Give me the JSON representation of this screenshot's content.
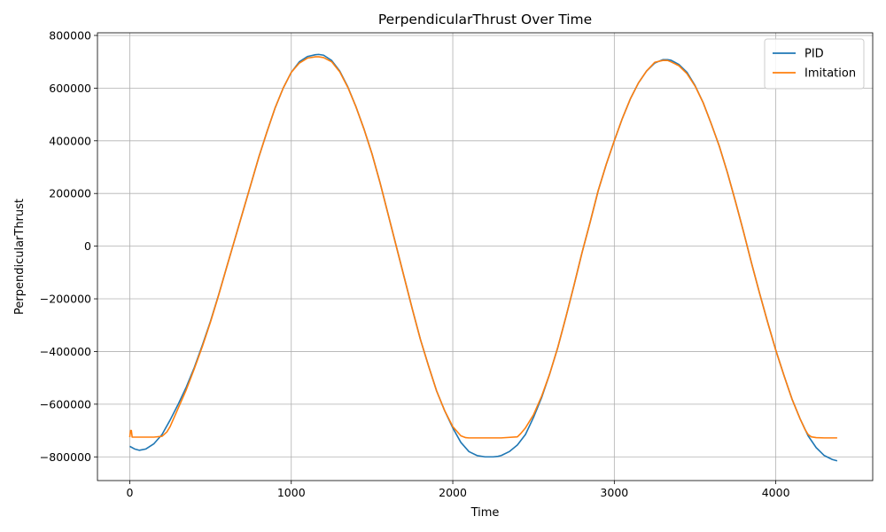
{
  "chart_data": {
    "type": "line",
    "title": "PerpendicularThrust Over Time",
    "xlabel": "Time",
    "ylabel": "PerpendicularThrust",
    "xlim": [
      -200,
      4600
    ],
    "ylim": [
      -890000,
      810000
    ],
    "xticks": [
      0,
      1000,
      2000,
      3000,
      4000
    ],
    "xtick_labels": [
      "0",
      "1000",
      "2000",
      "3000",
      "4000"
    ],
    "yticks": [
      -800000,
      -600000,
      -400000,
      -200000,
      0,
      200000,
      400000,
      600000,
      800000
    ],
    "ytick_labels": [
      "−800000",
      "−600000",
      "−400000",
      "−200000",
      "0",
      "200000",
      "400000",
      "600000",
      "800000"
    ],
    "grid": true,
    "legend_position": "top-right",
    "series": [
      {
        "name": "PID",
        "color": "#1f77b4",
        "x": [
          0,
          30,
          60,
          100,
          150,
          200,
          250,
          300,
          350,
          400,
          450,
          500,
          550,
          600,
          650,
          700,
          750,
          800,
          850,
          900,
          950,
          1000,
          1050,
          1100,
          1150,
          1170,
          1200,
          1250,
          1300,
          1350,
          1400,
          1450,
          1500,
          1550,
          1600,
          1650,
          1700,
          1750,
          1800,
          1850,
          1900,
          1950,
          2000,
          2050,
          2100,
          2150,
          2200,
          2250,
          2280,
          2300,
          2350,
          2400,
          2450,
          2500,
          2550,
          2600,
          2650,
          2700,
          2750,
          2800,
          2850,
          2900,
          2950,
          3000,
          3050,
          3100,
          3150,
          3200,
          3250,
          3300,
          3330,
          3350,
          3400,
          3450,
          3500,
          3550,
          3600,
          3650,
          3700,
          3750,
          3800,
          3850,
          3900,
          3950,
          4000,
          4050,
          4100,
          4150,
          4200,
          4250,
          4300,
          4350,
          4380
        ],
        "y": [
          -760000,
          -770000,
          -775000,
          -770000,
          -750000,
          -715000,
          -660000,
          -600000,
          -535000,
          -460000,
          -375000,
          -285000,
          -185000,
          -80000,
          25000,
          130000,
          235000,
          340000,
          435000,
          525000,
          600000,
          660000,
          700000,
          720000,
          727000,
          728000,
          725000,
          705000,
          665000,
          605000,
          530000,
          445000,
          350000,
          240000,
          120000,
          0,
          -120000,
          -240000,
          -355000,
          -455000,
          -550000,
          -625000,
          -690000,
          -745000,
          -780000,
          -795000,
          -800000,
          -800000,
          -798000,
          -795000,
          -780000,
          -755000,
          -715000,
          -650000,
          -575000,
          -485000,
          -385000,
          -270000,
          -150000,
          -25000,
          90000,
          210000,
          310000,
          400000,
          485000,
          560000,
          620000,
          665000,
          695000,
          708000,
          708000,
          706000,
          690000,
          660000,
          610000,
          545000,
          465000,
          380000,
          280000,
          170000,
          55000,
          -65000,
          -180000,
          -290000,
          -395000,
          -490000,
          -580000,
          -655000,
          -720000,
          -765000,
          -795000,
          -810000,
          -815000
        ]
      },
      {
        "name": "Imitation",
        "color": "#ff7f0e",
        "x": [
          0,
          5,
          10,
          15,
          30,
          100,
          150,
          200,
          230,
          250,
          300,
          350,
          400,
          450,
          500,
          550,
          600,
          650,
          700,
          750,
          800,
          850,
          900,
          950,
          1000,
          1050,
          1100,
          1150,
          1170,
          1200,
          1250,
          1300,
          1350,
          1400,
          1450,
          1500,
          1550,
          1600,
          1650,
          1700,
          1750,
          1800,
          1850,
          1900,
          1950,
          2000,
          2050,
          2080,
          2100,
          2150,
          2200,
          2300,
          2400,
          2420,
          2450,
          2500,
          2550,
          2600,
          2650,
          2700,
          2750,
          2800,
          2850,
          2900,
          2950,
          3000,
          3050,
          3100,
          3150,
          3200,
          3250,
          3300,
          3330,
          3350,
          3400,
          3450,
          3500,
          3550,
          3600,
          3650,
          3700,
          3750,
          3800,
          3850,
          3900,
          3950,
          4000,
          4050,
          4100,
          4150,
          4180,
          4200,
          4220,
          4250,
          4300,
          4380
        ],
        "y": [
          -725000,
          -700000,
          -700000,
          -725000,
          -725000,
          -725000,
          -725000,
          -722000,
          -705000,
          -685000,
          -615000,
          -545000,
          -465000,
          -380000,
          -288000,
          -187000,
          -80000,
          25000,
          130000,
          235000,
          340000,
          435000,
          525000,
          600000,
          660000,
          695000,
          714000,
          719000,
          719000,
          716000,
          700000,
          662000,
          603000,
          530000,
          445000,
          350000,
          240000,
          120000,
          0,
          -120000,
          -240000,
          -355000,
          -455000,
          -550000,
          -625000,
          -685000,
          -720000,
          -727000,
          -728000,
          -728000,
          -728000,
          -728000,
          -724000,
          -712000,
          -690000,
          -640000,
          -570000,
          -485000,
          -385000,
          -270000,
          -150000,
          -25000,
          90000,
          210000,
          310000,
          400000,
          485000,
          560000,
          620000,
          665000,
          698000,
          705000,
          705000,
          700000,
          685000,
          655000,
          608000,
          545000,
          465000,
          380000,
          280000,
          170000,
          55000,
          -65000,
          -180000,
          -290000,
          -395000,
          -490000,
          -580000,
          -655000,
          -695000,
          -715000,
          -724000,
          -727000,
          -728000,
          -728000
        ]
      }
    ]
  }
}
